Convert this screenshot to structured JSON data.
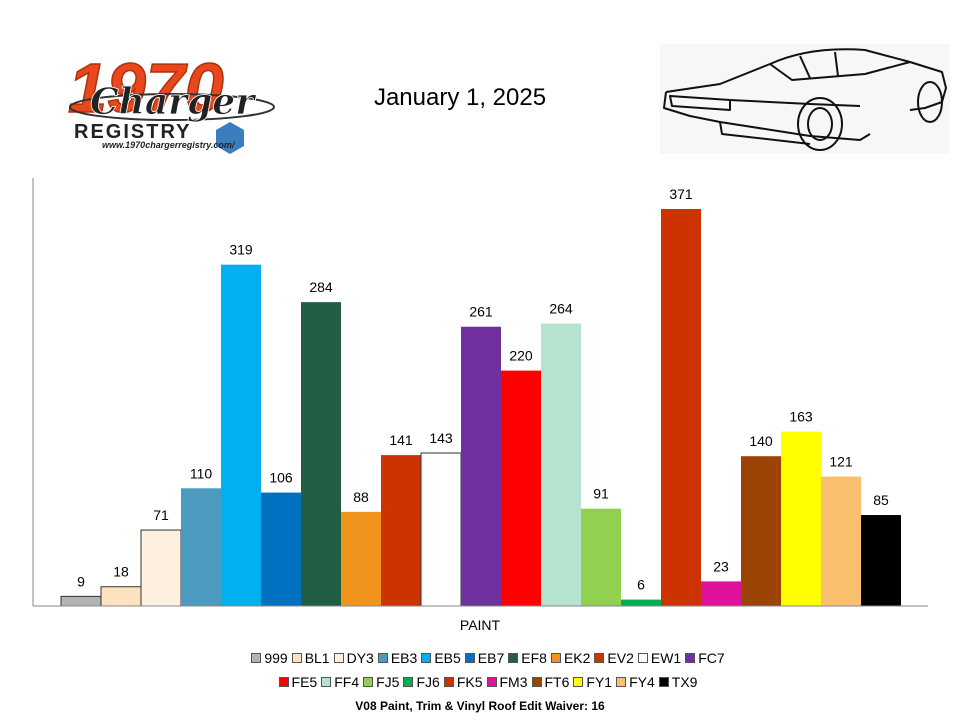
{
  "header": {
    "date": "January 1, 2025",
    "logo_text_number": "1970",
    "logo_text_script": "Charger",
    "logo_text_registry": "REGISTRY",
    "logo_url": "www.1970chargerregistry.com/"
  },
  "footer": {
    "text": "V08 Paint, Trim & Vinyl Roof Edit Waiver: 16"
  },
  "chart_data": {
    "type": "bar",
    "title": "",
    "xlabel": "PAINT",
    "ylabel": "",
    "ylim": [
      0,
      400
    ],
    "grid": false,
    "legend_position": "bottom",
    "categories": [
      "PAINT"
    ],
    "series": [
      {
        "name": "999",
        "value": 9,
        "color": "#b3b3b3"
      },
      {
        "name": "BL1",
        "value": 18,
        "color": "#fde2c2"
      },
      {
        "name": "DY3",
        "value": 71,
        "color": "#fdf0e0"
      },
      {
        "name": "EB3",
        "value": 110,
        "color": "#4a9bbf"
      },
      {
        "name": "EB5",
        "value": 319,
        "color": "#00b0f0"
      },
      {
        "name": "EB7",
        "value": 106,
        "color": "#0070c0"
      },
      {
        "name": "EF8",
        "value": 284,
        "color": "#215e44"
      },
      {
        "name": "EK2",
        "value": 88,
        "color": "#f0941e"
      },
      {
        "name": "EV2",
        "value": 141,
        "color": "#cc3300"
      },
      {
        "name": "EW1",
        "value": 143,
        "color": "#ffffff"
      },
      {
        "name": "FC7",
        "value": 261,
        "color": "#7030a0"
      },
      {
        "name": "FE5",
        "value": 220,
        "color": "#ff0000"
      },
      {
        "name": "FF4",
        "value": 264,
        "color": "#b5e3d0"
      },
      {
        "name": "FJ5",
        "value": 91,
        "color": "#92d050"
      },
      {
        "name": "FJ6",
        "value": 6,
        "color": "#00b050"
      },
      {
        "name": "FK5",
        "value": 371,
        "color": "#cc3300"
      },
      {
        "name": "FM3",
        "value": 23,
        "color": "#e0119d"
      },
      {
        "name": "FT6",
        "value": 140,
        "color": "#9c4306"
      },
      {
        "name": "FY1",
        "value": 163,
        "color": "#ffff00"
      },
      {
        "name": "FY4",
        "value": 121,
        "color": "#fac06e"
      },
      {
        "name": "TX9",
        "value": 85,
        "color": "#000000"
      }
    ]
  }
}
